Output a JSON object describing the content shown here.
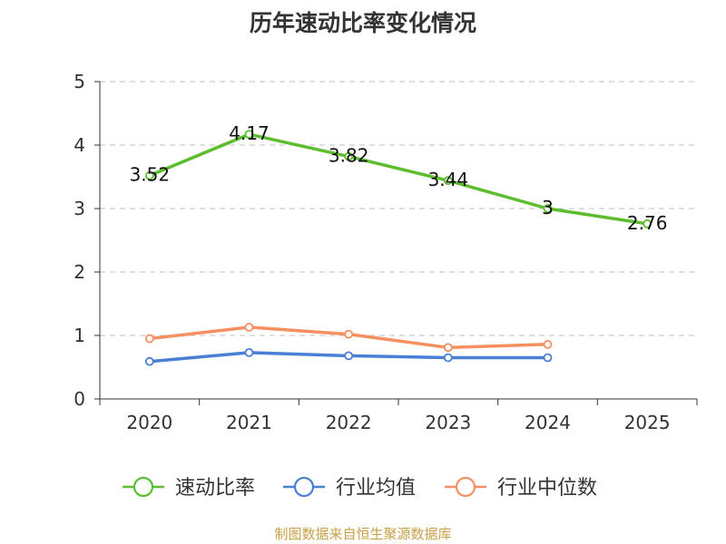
{
  "chart_data": {
    "type": "line",
    "title": "历年速动比率变化情况",
    "categories": [
      "2020",
      "2021",
      "2022",
      "2023",
      "2024",
      "2025"
    ],
    "ylim": [
      0,
      5
    ],
    "yticks": [
      0,
      1,
      2,
      3,
      4,
      5
    ],
    "grid": true,
    "legend_position": "bottom",
    "series": [
      {
        "name": "速动比率",
        "color": "#5cbd2f",
        "values": [
          3.52,
          4.17,
          3.82,
          3.44,
          3,
          2.76
        ],
        "labels": [
          "3.52",
          "4.17",
          "3.82",
          "3.44",
          "3",
          "2.76"
        ]
      },
      {
        "name": "行业均值",
        "color": "#4a7fd6",
        "values": [
          0.59,
          0.73,
          0.68,
          0.65,
          0.65,
          null
        ]
      },
      {
        "name": "行业中位数",
        "color": "#f79060",
        "values": [
          0.95,
          1.13,
          1.02,
          0.81,
          0.86,
          null
        ]
      }
    ]
  },
  "footer": {
    "source": "制图数据来自恒生聚源数据库"
  }
}
